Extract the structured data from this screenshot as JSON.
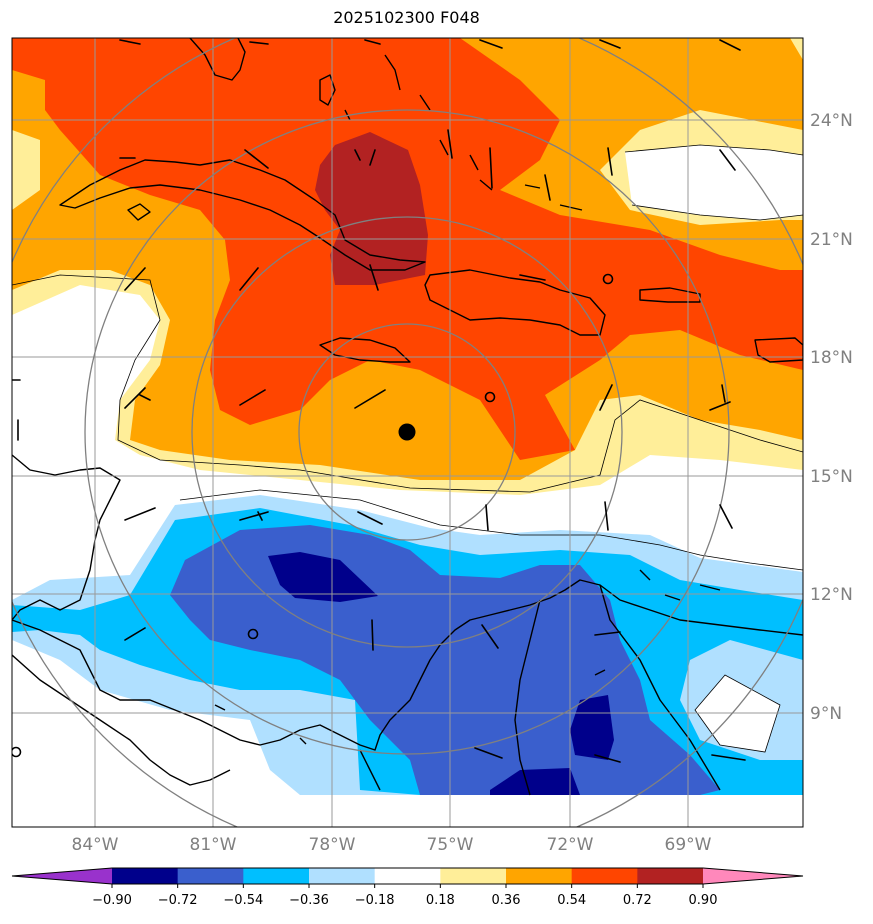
{
  "title": "2025102300 F048",
  "map": {
    "lon_labels": [
      "84°W",
      "81°W",
      "78°W",
      "75°W",
      "72°W",
      "69°W"
    ],
    "lat_labels": [
      "24°N",
      "21°N",
      "18°N",
      "15°N",
      "12°N",
      "9°N"
    ],
    "gridline_color": "#999999",
    "label_color": "#808080"
  },
  "colorbar": {
    "levels": [
      "−0.90",
      "−0.72",
      "−0.54",
      "−0.36",
      "−0.18",
      "0.18",
      "0.36",
      "0.54",
      "0.72",
      "0.90"
    ],
    "colors": [
      "#9932cc",
      "#00008b",
      "#3a5fcd",
      "#00bfff",
      "#b0e0ff",
      "#ffffff",
      "#ffee99",
      "#ffa500",
      "#ff4500",
      "#b22222",
      "#ff88bb"
    ]
  }
}
